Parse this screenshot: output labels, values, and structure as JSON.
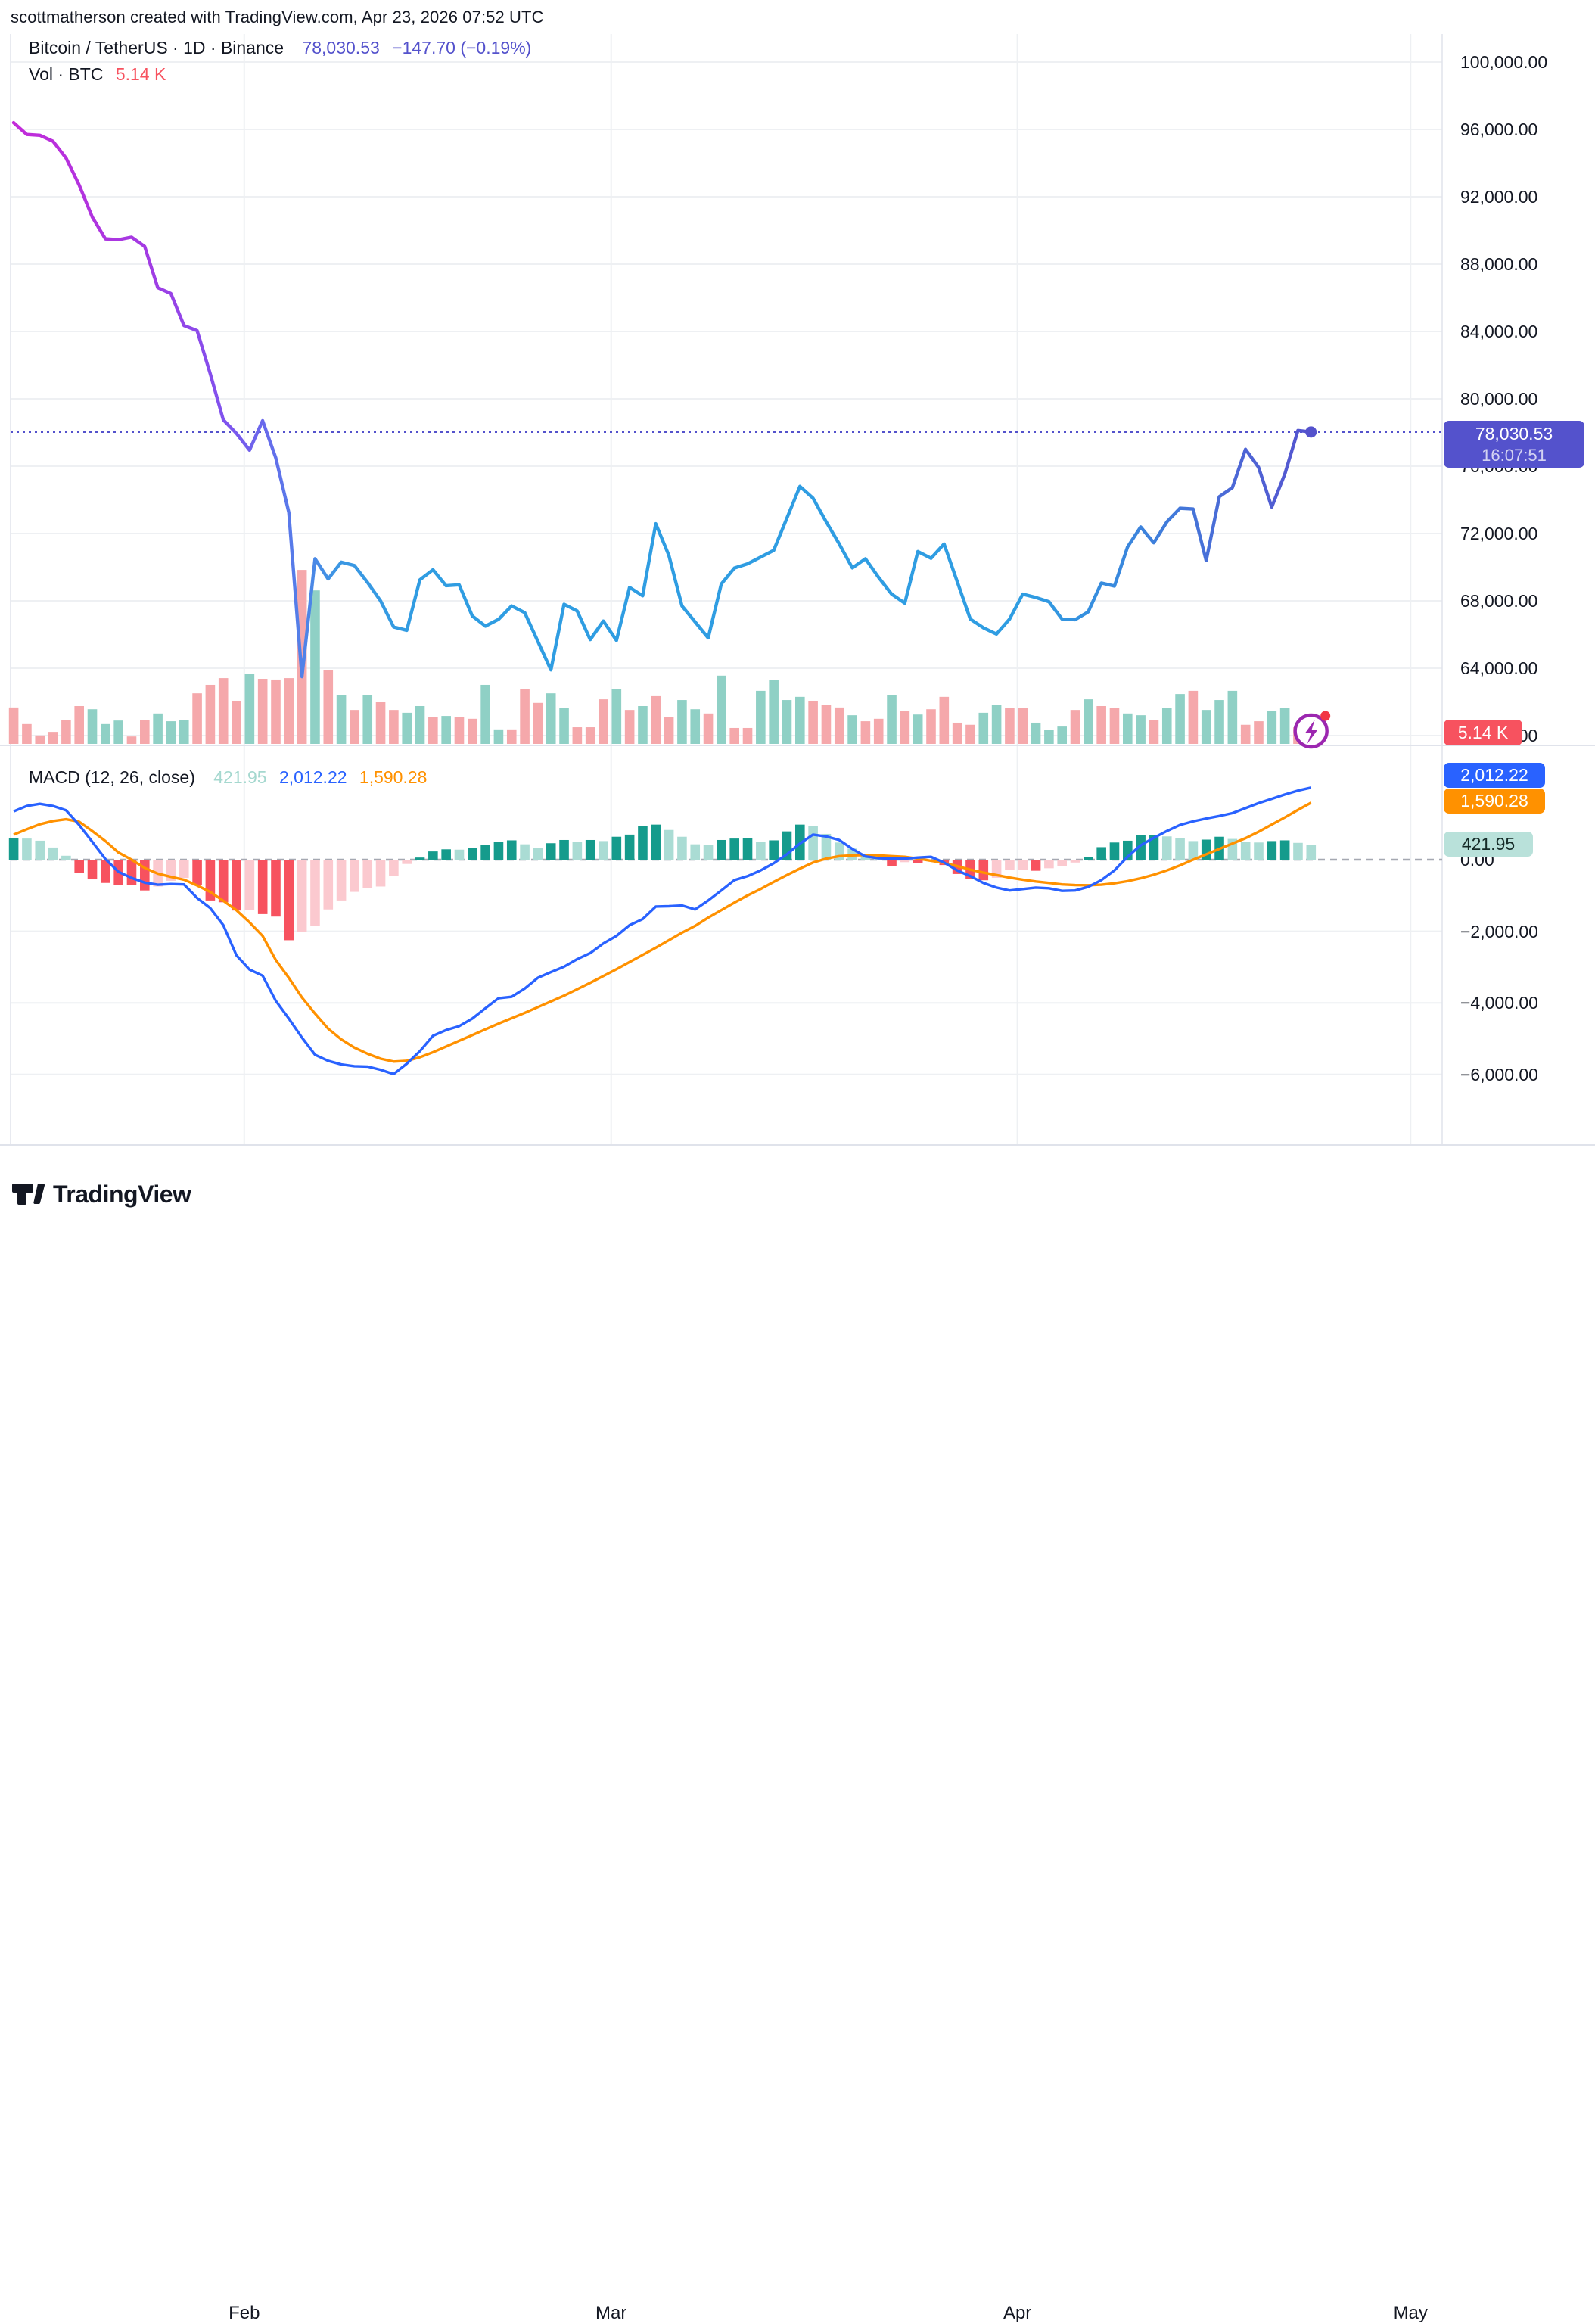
{
  "header": {
    "title": "scottmatherson created with TradingView.com, Apr 23, 2026 07:52 UTC"
  },
  "symbol_legend": {
    "title": "Bitcoin / TetherUS · 1D · Binance",
    "price": "78,030.53",
    "change": "−147.70 (−0.19%)"
  },
  "volume_legend": {
    "label": "Vol · BTC",
    "value": "5.14 K"
  },
  "macd_legend": {
    "label": "MACD (12, 26, close)",
    "hist": "421.95",
    "macd": "2,012.22",
    "signal": "1,590.28"
  },
  "badges": {
    "price_line1": "78,030.53",
    "price_line2": "16:07:51",
    "volume": "5.14 K",
    "macd": "2,012.22",
    "signal": "1,590.28",
    "hist": "421.95"
  },
  "axis": {
    "price_ticks": [
      {
        "label": "100,000.00",
        "value": 100000
      },
      {
        "label": "96,000.00",
        "value": 96000
      },
      {
        "label": "92,000.00",
        "value": 92000
      },
      {
        "label": "88,000.00",
        "value": 88000
      },
      {
        "label": "84,000.00",
        "value": 84000
      },
      {
        "label": "80,000.00",
        "value": 80000
      },
      {
        "label": "76,000.00",
        "value": 76000
      },
      {
        "label": "72,000.00",
        "value": 72000
      },
      {
        "label": "68,000.00",
        "value": 68000
      },
      {
        "label": "64,000.00",
        "value": 64000
      },
      {
        "label": "60,000.00",
        "value": 60000
      }
    ],
    "macd_ticks": [
      {
        "label": "0.00",
        "value": 0
      },
      {
        "label": "−2,000.00",
        "value": -2000
      },
      {
        "label": "−4,000.00",
        "value": -4000
      },
      {
        "label": "−6,000.00",
        "value": -6000
      }
    ],
    "months": [
      {
        "label": "Feb",
        "day": 18
      },
      {
        "label": "Mar",
        "day": 46
      },
      {
        "label": "Apr",
        "day": 77
      },
      {
        "label": "May",
        "day": 107
      }
    ]
  },
  "brand": {
    "name": "TradingView"
  },
  "colors": {
    "bg": "#ffffff",
    "text": "#131722",
    "grid": "#eef0f3",
    "divider": "#e0e3eb",
    "accent": "#5452cc",
    "dot_marker": "#5452cc",
    "vol_up": "#8fd0c5",
    "vol_down": "#f5a8ab",
    "macd_blue": "#2962ff",
    "macd_orange": "#ff9100",
    "hist_pos": "#159b8c",
    "hist_pos_light": "#aadcd4",
    "hist_neg": "#f7525f",
    "hist_neg_light": "#fbc9cf",
    "zero_dash": "#a5a8b1",
    "logo_purple": "#9c27b0",
    "logo_dot_red": "#f23645",
    "grad_stops": [
      "#c32bd9",
      "#a43ae3",
      "#7e53ee",
      "#5b77ea",
      "#3b97e3",
      "#2f9de2",
      "#2f9de2",
      "#3a86dd",
      "#4c68d6",
      "#5553cf"
    ],
    "grad_offsets": [
      0,
      0.1,
      0.165,
      0.21,
      0.25,
      0.32,
      0.78,
      0.86,
      0.94,
      1
    ]
  },
  "chart_data": {
    "type": "line",
    "title": "Bitcoin / TetherUS",
    "interval": "1D",
    "exchange": "Binance",
    "start_date": "2026-01-14",
    "end_date": "2026-04-23",
    "last_price": 78030.53,
    "change": -147.7,
    "change_pct": -0.19,
    "last_time": "16:07:51",
    "ylim": [
      59400,
      101700
    ],
    "macd_ylim": [
      -7400,
      2600
    ],
    "volume_unit": "K BTC",
    "close": [
      96400,
      95700,
      95650,
      95300,
      94300,
      92700,
      90800,
      89500,
      89450,
      89600,
      89050,
      86600,
      86250,
      84350,
      84050,
      81500,
      78750,
      77950,
      76950,
      78700,
      76500,
      73250,
      63500,
      70500,
      69300,
      70300,
      70100,
      69100,
      68000,
      66450,
      66250,
      69250,
      69850,
      68900,
      68950,
      67100,
      66500,
      66900,
      67700,
      67300,
      65600,
      63900,
      67800,
      67400,
      65700,
      66800,
      65650,
      68800,
      68300,
      72580,
      70700,
      67700,
      66750,
      65800,
      69000,
      69950,
      70200,
      70600,
      71000,
      72900,
      74800,
      74100,
      72700,
      71380,
      69960,
      70500,
      69400,
      68400,
      67860,
      70930,
      70530,
      71380,
      69150,
      66920,
      66400,
      66030,
      66920,
      68400,
      68200,
      67950,
      66920,
      66880,
      67350,
      69060,
      68880,
      71200,
      72390,
      71450,
      72690,
      73500,
      73460,
      70390,
      74190,
      74730,
      77000,
      75930,
      73570,
      75530,
      78120,
      78030.53
    ],
    "volume_k": [
      10.3,
      5.6,
      2.4,
      3.4,
      6.8,
      10.7,
      9.8,
      5.6,
      6.6,
      2.1,
      6.8,
      8.6,
      6.4,
      6.8,
      14.3,
      16.7,
      18.6,
      12.2,
      19.9,
      18.4,
      18.2,
      18.6,
      49.2,
      43.4,
      20.8,
      13.9,
      9.6,
      13.7,
      11.8,
      9.6,
      8.8,
      10.7,
      7.7,
      7.9,
      7.7,
      7.1,
      16.7,
      4.1,
      4.1,
      15.6,
      11.6,
      14.3,
      10.1,
      4.7,
      4.7,
      12.6,
      15.6,
      9.6,
      10.7,
      13.5,
      7.5,
      12.4,
      9.8,
      8.6,
      19.3,
      4.5,
      4.5,
      15.0,
      18.0,
      12.4,
      13.3,
      12.2,
      11.1,
      10.3,
      8.1,
      6.4,
      7.1,
      13.7,
      9.4,
      8.3,
      9.8,
      13.3,
      6.0,
      5.4,
      8.8,
      11.1,
      10.1,
      10.1,
      6.0,
      3.9,
      4.9,
      9.6,
      12.6,
      10.7,
      10.1,
      8.6,
      8.1,
      6.8,
      10.1,
      14.1,
      15.0,
      9.6,
      12.4,
      15.0,
      5.4,
      6.4,
      9.4,
      10.1,
      4.7,
      5.14
    ],
    "volume_dir": "rrrrrrgggrrgggrrrrgrrrrgrgrgrrggrgrrggrrrggrrrgrgrrggrgrrggggrrrgrrgrgrrrrggrrgggrgrrggrggrgggrrggrr",
    "macd": [
      1350,
      1500,
      1560,
      1500,
      1380,
      970,
      500,
      20,
      -340,
      -510,
      -640,
      -700,
      -680,
      -690,
      -1070,
      -1350,
      -1830,
      -2670,
      -3070,
      -3240,
      -3940,
      -4440,
      -4970,
      -5450,
      -5620,
      -5720,
      -5770,
      -5780,
      -5870,
      -5990,
      -5700,
      -5350,
      -4920,
      -4760,
      -4650,
      -4440,
      -4150,
      -3870,
      -3830,
      -3600,
      -3300,
      -3140,
      -2990,
      -2780,
      -2610,
      -2340,
      -2130,
      -1830,
      -1660,
      -1310,
      -1300,
      -1280,
      -1390,
      -1140,
      -860,
      -570,
      -460,
      -300,
      -100,
      150,
      450,
      700,
      650,
      550,
      300,
      90,
      40,
      30,
      30,
      60,
      80,
      -80,
      -300,
      -460,
      -650,
      -780,
      -860,
      -820,
      -780,
      -800,
      -870,
      -860,
      -760,
      -570,
      -300,
      80,
      400,
      610,
      800,
      970,
      1070,
      1150,
      1220,
      1300,
      1440,
      1580,
      1700,
      1820,
      1930,
      2012.22
    ],
    "signal": [
      700,
      850,
      990,
      1080,
      1130,
      1060,
      800,
      520,
      200,
      0,
      -230,
      -390,
      -480,
      -560,
      -720,
      -900,
      -1150,
      -1410,
      -1750,
      -2130,
      -2800,
      -3300,
      -3850,
      -4300,
      -4720,
      -5020,
      -5250,
      -5420,
      -5560,
      -5640,
      -5620,
      -5520,
      -5380,
      -5220,
      -5060,
      -4900,
      -4740,
      -4580,
      -4430,
      -4280,
      -4120,
      -3960,
      -3800,
      -3620,
      -3440,
      -3250,
      -3060,
      -2860,
      -2660,
      -2460,
      -2250,
      -2040,
      -1850,
      -1620,
      -1410,
      -1200,
      -1000,
      -820,
      -620,
      -430,
      -250,
      -80,
      30,
      100,
      120,
      130,
      120,
      100,
      80,
      30,
      -30,
      -90,
      -180,
      -280,
      -360,
      -430,
      -500,
      -560,
      -610,
      -650,
      -690,
      -710,
      -715,
      -700,
      -660,
      -600,
      -520,
      -420,
      -300,
      -160,
      0,
      150,
      300,
      450,
      600,
      780,
      980,
      1180,
      1390,
      1590.28
    ],
    "hist": [
      610,
      590,
      530,
      340,
      110,
      -360,
      -550,
      -650,
      -700,
      -700,
      -860,
      -750,
      -590,
      -510,
      -720,
      -1140,
      -1190,
      -1420,
      -1400,
      -1520,
      -1590,
      -2250,
      -2020,
      -1850,
      -1390,
      -1140,
      -900,
      -790,
      -750,
      -460,
      -120,
      60,
      230,
      290,
      280,
      320,
      420,
      500,
      540,
      430,
      330,
      460,
      550,
      500,
      550,
      520,
      640,
      700,
      950,
      980,
      830,
      640,
      430,
      420,
      550,
      590,
      600,
      500,
      540,
      790,
      980,
      950,
      720,
      480,
      310,
      160,
      40,
      -190,
      -70,
      -100,
      -30,
      -150,
      -400,
      -540,
      -575,
      -505,
      -295,
      -280,
      -310,
      -240,
      -190,
      -80,
      70,
      350,
      480,
      530,
      680,
      680,
      650,
      600,
      520,
      560,
      640,
      580,
      500,
      480,
      520,
      540,
      470,
      421.95
    ]
  }
}
